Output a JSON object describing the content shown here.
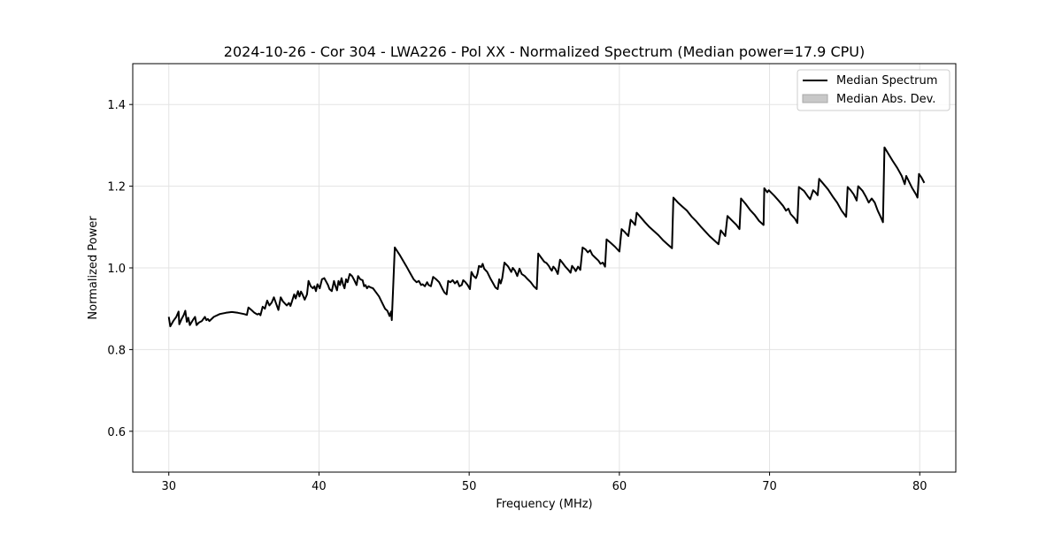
{
  "chart_data": {
    "type": "line",
    "title": "2024-10-26 - Cor 304 - LWA226 - Pol XX - Normalized Spectrum (Median power=17.9 CPU)",
    "xlabel": "Frequency (MHz)",
    "ylabel": "Normalized Power",
    "xlim": [
      27.6,
      82.4
    ],
    "ylim": [
      0.5,
      1.5
    ],
    "xticks": [
      30,
      40,
      50,
      60,
      70,
      80
    ],
    "yticks": [
      0.6,
      0.8,
      1.0,
      1.2,
      1.4
    ],
    "xtick_labels": [
      "30",
      "40",
      "50",
      "60",
      "70",
      "80"
    ],
    "ytick_labels": [
      "0.6",
      "0.8",
      "1.0",
      "1.2",
      "1.4"
    ],
    "grid": true,
    "legend_position": "top-right",
    "legend": [
      {
        "label": "Median Spectrum",
        "kind": "line",
        "color": "#000000"
      },
      {
        "label": "Median Abs. Dev.",
        "kind": "patch",
        "color": "#c8c8c8"
      }
    ],
    "series": [
      {
        "name": "Median Spectrum",
        "color": "#000000",
        "points": [
          [
            30.0,
            0.88
          ],
          [
            30.1,
            0.857
          ],
          [
            30.3,
            0.87
          ],
          [
            30.5,
            0.88
          ],
          [
            30.65,
            0.893
          ],
          [
            30.7,
            0.862
          ],
          [
            30.85,
            0.875
          ],
          [
            31.0,
            0.885
          ],
          [
            31.1,
            0.895
          ],
          [
            31.2,
            0.868
          ],
          [
            31.3,
            0.878
          ],
          [
            31.4,
            0.86
          ],
          [
            31.6,
            0.872
          ],
          [
            31.75,
            0.88
          ],
          [
            31.85,
            0.86
          ],
          [
            32.0,
            0.866
          ],
          [
            32.2,
            0.87
          ],
          [
            32.4,
            0.88
          ],
          [
            32.5,
            0.872
          ],
          [
            32.6,
            0.875
          ],
          [
            32.7,
            0.87
          ],
          [
            33.0,
            0.88
          ],
          [
            33.4,
            0.887
          ],
          [
            33.8,
            0.89
          ],
          [
            34.2,
            0.892
          ],
          [
            34.6,
            0.89
          ],
          [
            35.0,
            0.887
          ],
          [
            35.2,
            0.885
          ],
          [
            35.3,
            0.903
          ],
          [
            35.5,
            0.897
          ],
          [
            35.7,
            0.89
          ],
          [
            35.9,
            0.886
          ],
          [
            36.0,
            0.888
          ],
          [
            36.1,
            0.884
          ],
          [
            36.25,
            0.905
          ],
          [
            36.4,
            0.9
          ],
          [
            36.55,
            0.92
          ],
          [
            36.7,
            0.908
          ],
          [
            36.85,
            0.915
          ],
          [
            37.0,
            0.928
          ],
          [
            37.15,
            0.912
          ],
          [
            37.3,
            0.897
          ],
          [
            37.45,
            0.928
          ],
          [
            37.6,
            0.918
          ],
          [
            37.75,
            0.912
          ],
          [
            37.85,
            0.908
          ],
          [
            38.0,
            0.914
          ],
          [
            38.1,
            0.907
          ],
          [
            38.2,
            0.918
          ],
          [
            38.35,
            0.935
          ],
          [
            38.45,
            0.925
          ],
          [
            38.6,
            0.943
          ],
          [
            38.7,
            0.93
          ],
          [
            38.8,
            0.942
          ],
          [
            38.9,
            0.935
          ],
          [
            39.05,
            0.922
          ],
          [
            39.2,
            0.935
          ],
          [
            39.3,
            0.968
          ],
          [
            39.45,
            0.955
          ],
          [
            39.6,
            0.95
          ],
          [
            39.7,
            0.955
          ],
          [
            39.8,
            0.943
          ],
          [
            39.9,
            0.96
          ],
          [
            40.05,
            0.95
          ],
          [
            40.2,
            0.972
          ],
          [
            40.35,
            0.975
          ],
          [
            40.5,
            0.965
          ],
          [
            40.6,
            0.958
          ],
          [
            40.7,
            0.948
          ],
          [
            40.85,
            0.943
          ],
          [
            41.0,
            0.968
          ],
          [
            41.1,
            0.955
          ],
          [
            41.2,
            0.945
          ],
          [
            41.3,
            0.968
          ],
          [
            41.4,
            0.958
          ],
          [
            41.5,
            0.975
          ],
          [
            41.6,
            0.96
          ],
          [
            41.7,
            0.95
          ],
          [
            41.8,
            0.972
          ],
          [
            41.9,
            0.965
          ],
          [
            42.05,
            0.985
          ],
          [
            42.2,
            0.98
          ],
          [
            42.35,
            0.97
          ],
          [
            42.5,
            0.958
          ],
          [
            42.6,
            0.98
          ],
          [
            42.75,
            0.972
          ],
          [
            42.9,
            0.97
          ],
          [
            43.0,
            0.955
          ],
          [
            43.1,
            0.958
          ],
          [
            43.2,
            0.95
          ],
          [
            43.3,
            0.955
          ],
          [
            43.45,
            0.952
          ],
          [
            43.6,
            0.95
          ],
          [
            43.8,
            0.94
          ],
          [
            44.0,
            0.93
          ],
          [
            44.2,
            0.915
          ],
          [
            44.4,
            0.9
          ],
          [
            44.55,
            0.895
          ],
          [
            44.7,
            0.882
          ],
          [
            44.8,
            0.893
          ],
          [
            44.85,
            0.872
          ],
          [
            44.95,
            0.96
          ],
          [
            45.05,
            1.05
          ],
          [
            45.4,
            1.03
          ],
          [
            45.8,
            1.005
          ],
          [
            46.1,
            0.985
          ],
          [
            46.3,
            0.972
          ],
          [
            46.5,
            0.965
          ],
          [
            46.65,
            0.968
          ],
          [
            46.8,
            0.958
          ],
          [
            46.9,
            0.96
          ],
          [
            47.05,
            0.955
          ],
          [
            47.2,
            0.965
          ],
          [
            47.3,
            0.958
          ],
          [
            47.45,
            0.955
          ],
          [
            47.6,
            0.978
          ],
          [
            47.8,
            0.972
          ],
          [
            48.0,
            0.965
          ],
          [
            48.2,
            0.95
          ],
          [
            48.35,
            0.94
          ],
          [
            48.5,
            0.935
          ],
          [
            48.6,
            0.968
          ],
          [
            48.75,
            0.965
          ],
          [
            48.9,
            0.97
          ],
          [
            49.05,
            0.962
          ],
          [
            49.2,
            0.968
          ],
          [
            49.35,
            0.955
          ],
          [
            49.5,
            0.958
          ],
          [
            49.6,
            0.97
          ],
          [
            49.75,
            0.965
          ],
          [
            49.9,
            0.958
          ],
          [
            50.05,
            0.948
          ],
          [
            50.15,
            0.99
          ],
          [
            50.3,
            0.98
          ],
          [
            50.45,
            0.975
          ],
          [
            50.55,
            0.985
          ],
          [
            50.65,
            1.005
          ],
          [
            50.8,
            1.002
          ],
          [
            50.9,
            1.01
          ],
          [
            51.0,
            0.998
          ],
          [
            51.2,
            0.99
          ],
          [
            51.4,
            0.975
          ],
          [
            51.6,
            0.962
          ],
          [
            51.75,
            0.952
          ],
          [
            51.9,
            0.948
          ],
          [
            52.0,
            0.972
          ],
          [
            52.1,
            0.962
          ],
          [
            52.2,
            0.975
          ],
          [
            52.35,
            1.013
          ],
          [
            52.6,
            1.003
          ],
          [
            52.8,
            0.99
          ],
          [
            52.9,
            1.0
          ],
          [
            53.05,
            0.993
          ],
          [
            53.2,
            0.98
          ],
          [
            53.35,
            0.998
          ],
          [
            53.5,
            0.985
          ],
          [
            53.7,
            0.98
          ],
          [
            53.9,
            0.972
          ],
          [
            54.1,
            0.965
          ],
          [
            54.3,
            0.955
          ],
          [
            54.5,
            0.948
          ],
          [
            54.6,
            1.035
          ],
          [
            54.8,
            1.025
          ],
          [
            55.0,
            1.015
          ],
          [
            55.15,
            1.012
          ],
          [
            55.3,
            1.005
          ],
          [
            55.4,
            0.998
          ],
          [
            55.5,
            0.993
          ],
          [
            55.6,
            1.003
          ],
          [
            55.75,
            0.997
          ],
          [
            55.9,
            0.985
          ],
          [
            56.05,
            1.02
          ],
          [
            56.2,
            1.013
          ],
          [
            56.4,
            1.003
          ],
          [
            56.6,
            0.995
          ],
          [
            56.75,
            0.988
          ],
          [
            56.85,
            1.005
          ],
          [
            57.0,
            0.998
          ],
          [
            57.1,
            0.992
          ],
          [
            57.25,
            1.003
          ],
          [
            57.4,
            0.995
          ],
          [
            57.55,
            1.05
          ],
          [
            57.75,
            1.045
          ],
          [
            57.9,
            1.038
          ],
          [
            58.05,
            1.043
          ],
          [
            58.2,
            1.032
          ],
          [
            58.4,
            1.025
          ],
          [
            58.6,
            1.018
          ],
          [
            58.75,
            1.01
          ],
          [
            58.9,
            1.013
          ],
          [
            59.05,
            1.003
          ],
          [
            59.15,
            1.07
          ],
          [
            59.4,
            1.062
          ],
          [
            59.7,
            1.052
          ],
          [
            60.0,
            1.04
          ],
          [
            60.15,
            1.095
          ],
          [
            60.35,
            1.088
          ],
          [
            60.6,
            1.078
          ],
          [
            60.75,
            1.118
          ],
          [
            60.9,
            1.112
          ],
          [
            61.05,
            1.105
          ],
          [
            61.15,
            1.135
          ],
          [
            61.4,
            1.125
          ],
          [
            61.7,
            1.112
          ],
          [
            62.0,
            1.1
          ],
          [
            62.3,
            1.09
          ],
          [
            62.6,
            1.08
          ],
          [
            62.9,
            1.068
          ],
          [
            63.2,
            1.058
          ],
          [
            63.5,
            1.048
          ],
          [
            63.6,
            1.172
          ],
          [
            63.9,
            1.16
          ],
          [
            64.2,
            1.15
          ],
          [
            64.5,
            1.14
          ],
          [
            64.8,
            1.126
          ],
          [
            65.1,
            1.115
          ],
          [
            65.4,
            1.102
          ],
          [
            65.7,
            1.09
          ],
          [
            66.0,
            1.078
          ],
          [
            66.3,
            1.068
          ],
          [
            66.6,
            1.058
          ],
          [
            66.75,
            1.092
          ],
          [
            66.9,
            1.085
          ],
          [
            67.05,
            1.078
          ],
          [
            67.2,
            1.127
          ],
          [
            67.5,
            1.116
          ],
          [
            67.8,
            1.105
          ],
          [
            68.0,
            1.095
          ],
          [
            68.1,
            1.17
          ],
          [
            68.4,
            1.157
          ],
          [
            68.7,
            1.142
          ],
          [
            69.0,
            1.13
          ],
          [
            69.3,
            1.115
          ],
          [
            69.6,
            1.105
          ],
          [
            69.65,
            1.195
          ],
          [
            69.85,
            1.185
          ],
          [
            69.95,
            1.19
          ],
          [
            70.3,
            1.177
          ],
          [
            70.6,
            1.165
          ],
          [
            70.9,
            1.152
          ],
          [
            71.1,
            1.14
          ],
          [
            71.25,
            1.145
          ],
          [
            71.4,
            1.132
          ],
          [
            71.7,
            1.12
          ],
          [
            71.85,
            1.11
          ],
          [
            71.95,
            1.198
          ],
          [
            72.3,
            1.188
          ],
          [
            72.55,
            1.175
          ],
          [
            72.7,
            1.168
          ],
          [
            72.9,
            1.19
          ],
          [
            73.05,
            1.185
          ],
          [
            73.2,
            1.178
          ],
          [
            73.3,
            1.218
          ],
          [
            73.6,
            1.205
          ],
          [
            73.9,
            1.192
          ],
          [
            74.2,
            1.175
          ],
          [
            74.5,
            1.16
          ],
          [
            74.8,
            1.14
          ],
          [
            75.0,
            1.13
          ],
          [
            75.1,
            1.125
          ],
          [
            75.2,
            1.198
          ],
          [
            75.4,
            1.19
          ],
          [
            75.6,
            1.18
          ],
          [
            75.8,
            1.165
          ],
          [
            75.9,
            1.2
          ],
          [
            76.2,
            1.188
          ],
          [
            76.4,
            1.175
          ],
          [
            76.6,
            1.16
          ],
          [
            76.8,
            1.17
          ],
          [
            77.0,
            1.16
          ],
          [
            77.2,
            1.14
          ],
          [
            77.4,
            1.125
          ],
          [
            77.55,
            1.112
          ],
          [
            77.65,
            1.295
          ],
          [
            77.9,
            1.28
          ],
          [
            78.2,
            1.262
          ],
          [
            78.5,
            1.245
          ],
          [
            78.8,
            1.225
          ],
          [
            79.0,
            1.205
          ],
          [
            79.1,
            1.225
          ],
          [
            79.3,
            1.21
          ],
          [
            79.5,
            1.195
          ],
          [
            79.75,
            1.18
          ],
          [
            79.85,
            1.172
          ],
          [
            79.95,
            1.23
          ],
          [
            80.1,
            1.222
          ],
          [
            80.3,
            1.208
          ]
        ]
      }
    ]
  }
}
